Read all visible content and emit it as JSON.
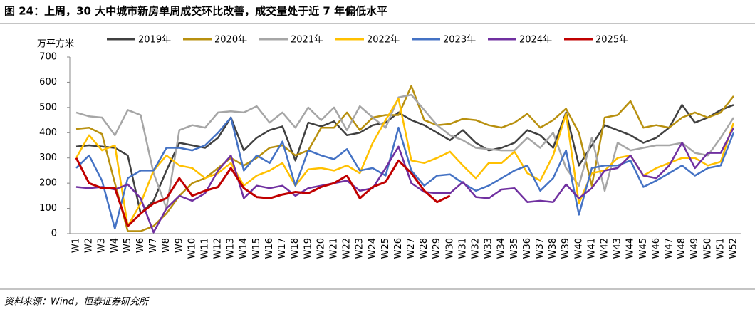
{
  "chart_data": {
    "type": "line",
    "title": "图 24：上周，30 大中城市新房单周成交环比改善，成交量处于近 7 年偏低水平",
    "y_label": "万平方米",
    "source": "资料来源：Wind，恒泰证券研究所",
    "categories": [
      "W1",
      "W2",
      "W3",
      "W4",
      "W5",
      "W6",
      "W7",
      "W8",
      "W9",
      "W10",
      "W11",
      "W12",
      "W13",
      "W14",
      "W15",
      "W16",
      "W17",
      "W18",
      "W19",
      "W20",
      "W21",
      "W22",
      "W23",
      "W24",
      "W25",
      "W26",
      "W27",
      "W28",
      "W29",
      "W30",
      "W31",
      "W32",
      "W33",
      "W34",
      "W35",
      "W36",
      "W37",
      "W38",
      "W39",
      "W40",
      "W41",
      "W42",
      "W43",
      "W44",
      "W45",
      "W46",
      "W47",
      "W48",
      "W49",
      "W50",
      "W51",
      "W52"
    ],
    "ylim": [
      0,
      700
    ],
    "yticks": [
      0,
      100,
      200,
      300,
      400,
      500,
      600,
      700
    ],
    "series": [
      {
        "name": "2019年",
        "color": "#404040",
        "values": [
          345,
          350,
          345,
          340,
          310,
          80,
          130,
          250,
          360,
          350,
          340,
          380,
          460,
          330,
          380,
          410,
          425,
          290,
          440,
          425,
          445,
          390,
          400,
          430,
          440,
          480,
          450,
          430,
          400,
          370,
          410,
          360,
          330,
          340,
          360,
          410,
          390,
          340,
          480,
          270,
          350,
          430,
          410,
          390,
          360,
          380,
          420,
          510,
          440,
          460,
          490,
          510
        ]
      },
      {
        "name": "2020年",
        "color": "#b8900f",
        "values": [
          415,
          420,
          395,
          200,
          10,
          10,
          30,
          80,
          150,
          200,
          220,
          260,
          300,
          270,
          300,
          340,
          350,
          310,
          330,
          420,
          420,
          480,
          410,
          460,
          470,
          470,
          585,
          450,
          430,
          435,
          455,
          450,
          430,
          420,
          440,
          475,
          420,
          450,
          495,
          400,
          190,
          460,
          470,
          525,
          420,
          430,
          420,
          460,
          480,
          460,
          480,
          545
        ]
      },
      {
        "name": "2021年",
        "color": "#a6a6a6",
        "values": [
          480,
          465,
          460,
          390,
          490,
          470,
          240,
          100,
          410,
          430,
          420,
          480,
          485,
          480,
          505,
          440,
          480,
          420,
          500,
          450,
          500,
          410,
          505,
          460,
          420,
          540,
          550,
          490,
          430,
          390,
          370,
          340,
          335,
          330,
          330,
          380,
          340,
          400,
          260,
          190,
          380,
          170,
          360,
          330,
          340,
          350,
          350,
          360,
          320,
          310,
          380,
          460
        ]
      },
      {
        "name": "2022年",
        "color": "#ffc000",
        "values": [
          300,
          390,
          330,
          350,
          30,
          120,
          250,
          310,
          270,
          260,
          220,
          240,
          280,
          190,
          230,
          250,
          280,
          190,
          255,
          260,
          250,
          270,
          240,
          360,
          450,
          535,
          290,
          280,
          300,
          325,
          270,
          220,
          280,
          280,
          325,
          240,
          210,
          310,
          475,
          120,
          240,
          250,
          300,
          310,
          230,
          260,
          280,
          300,
          300,
          270,
          285,
          440
        ]
      },
      {
        "name": "2023年",
        "color": "#4472c4",
        "values": [
          260,
          310,
          210,
          20,
          220,
          250,
          250,
          340,
          340,
          330,
          350,
          400,
          460,
          250,
          310,
          280,
          365,
          190,
          330,
          310,
          295,
          335,
          250,
          260,
          230,
          420,
          250,
          190,
          230,
          235,
          200,
          170,
          190,
          220,
          250,
          270,
          170,
          220,
          330,
          75,
          260,
          270,
          270,
          290,
          185,
          210,
          240,
          270,
          230,
          260,
          270,
          400
        ]
      },
      {
        "name": "2024年",
        "color": "#7030a0",
        "values": [
          185,
          180,
          185,
          175,
          195,
          140,
          5,
          100,
          150,
          130,
          160,
          250,
          310,
          140,
          190,
          180,
          190,
          150,
          180,
          190,
          200,
          210,
          170,
          180,
          260,
          345,
          200,
          165,
          160,
          160,
          205,
          145,
          140,
          175,
          180,
          125,
          130,
          125,
          195,
          140,
          180,
          250,
          260,
          310,
          230,
          220,
          270,
          360,
          260,
          320,
          320,
          420
        ]
      },
      {
        "name": "2025年",
        "color": "#c00000",
        "values": [
          300,
          200,
          180,
          180,
          30,
          80,
          120,
          140,
          220,
          150,
          170,
          185,
          260,
          180,
          145,
          140,
          155,
          165,
          160,
          185,
          200,
          230,
          140,
          185,
          205,
          290,
          240,
          170,
          125,
          150,
          null,
          null,
          null,
          null,
          null,
          null,
          null,
          null,
          null,
          null,
          null,
          null,
          null,
          null,
          null,
          null,
          null,
          null,
          null,
          null,
          null,
          null
        ]
      }
    ]
  }
}
